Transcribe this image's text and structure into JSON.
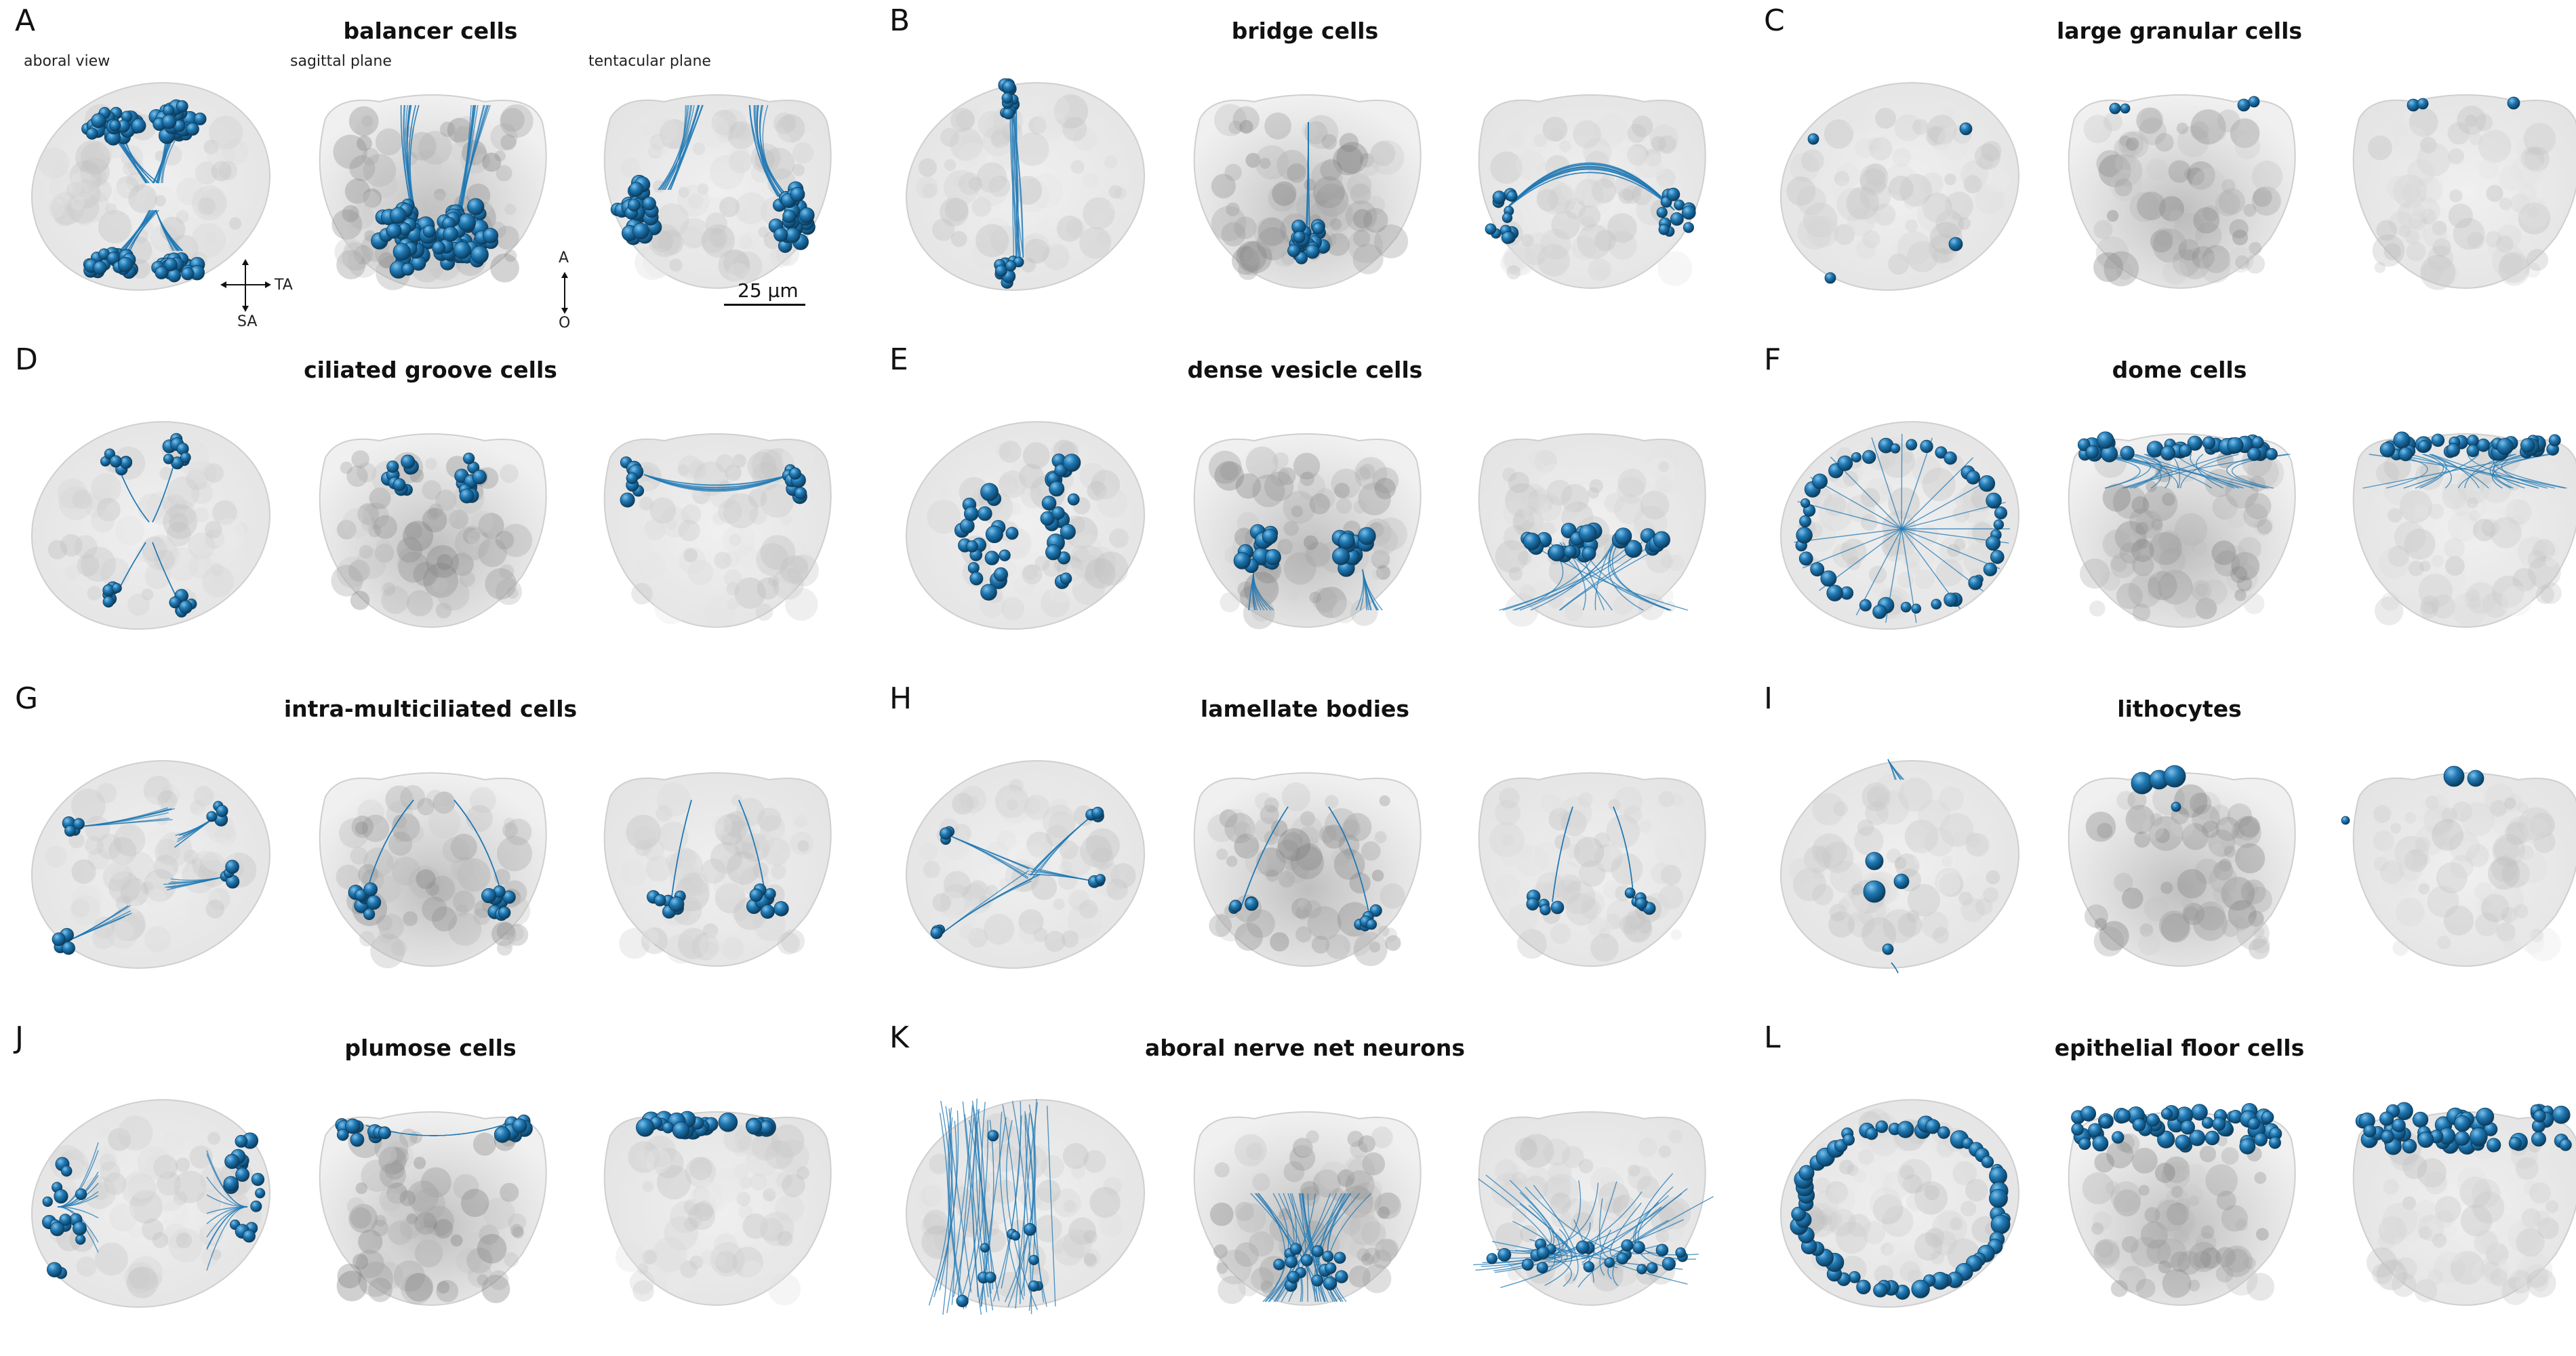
{
  "panels": [
    {
      "letter": "A",
      "title": "balancer cells",
      "pattern": "balancer"
    },
    {
      "letter": "B",
      "title": "bridge cells",
      "pattern": "bridge"
    },
    {
      "letter": "C",
      "title": "large granular cells",
      "pattern": "granular"
    },
    {
      "letter": "D",
      "title": "ciliated groove cells",
      "pattern": "groove"
    },
    {
      "letter": "E",
      "title": "dense vesicle cells",
      "pattern": "vesicle"
    },
    {
      "letter": "F",
      "title": "dome cells",
      "pattern": "dome"
    },
    {
      "letter": "G",
      "title": "intra-multiciliated cells",
      "pattern": "intra"
    },
    {
      "letter": "H",
      "title": "lamellate bodies",
      "pattern": "lamellate"
    },
    {
      "letter": "I",
      "title": "lithocytes",
      "pattern": "litho"
    },
    {
      "letter": "J",
      "title": "plumose cells",
      "pattern": "plumose"
    },
    {
      "letter": "K",
      "title": "aboral nerve net neurons",
      "pattern": "nerve"
    },
    {
      "letter": "L",
      "title": "epithelial floor cells",
      "pattern": "floor"
    }
  ],
  "view_labels": {
    "aboral": "aboral view",
    "sagittal": "sagittal plane",
    "tentacular": "tentacular plane"
  },
  "axes": {
    "ta": "TA",
    "sa": "SA",
    "a": "A",
    "o": "O"
  },
  "scale_bar": {
    "label": "25 µm"
  },
  "colors": {
    "cell": "#1f78b4",
    "cell_dark": "#0c3d5e",
    "tissue": "#c8c8c8"
  }
}
